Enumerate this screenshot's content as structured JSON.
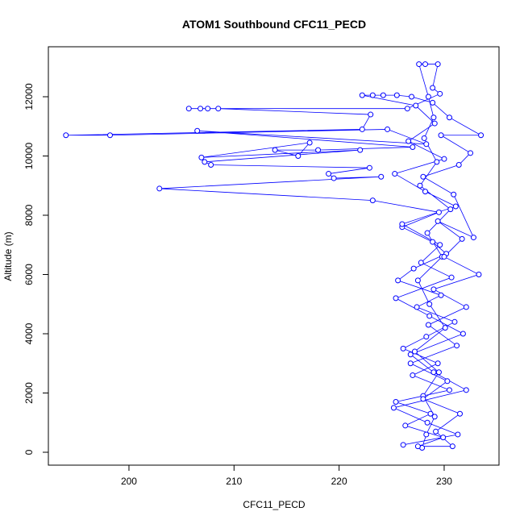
{
  "chart_data": {
    "type": "line",
    "title": "ATOM1 Southbound CFC11_PECD",
    "xlabel": "CFC11_PECD",
    "ylabel": "Altitude (m)",
    "markers": true,
    "color": "#0000ff",
    "x": [
      227.9,
      228.3,
      229.1,
      228.0,
      229.5,
      227.2,
      230.1,
      228.6,
      227.5,
      229.8,
      228.4,
      230.6,
      227.7,
      229.3,
      228.1,
      229.0,
      228.5,
      227.6,
      228.2,
      229.4,
      228.9,
      229.6,
      226.5,
      206.8,
      205.7,
      207.5,
      208.5,
      223.0,
      222.2,
      194.0,
      198.2,
      224.6,
      228.3,
      206.5,
      227.0,
      218.0,
      213.9,
      216.1,
      217.2,
      206.9,
      222.0,
      207.2,
      207.8,
      222.9,
      219.0,
      219.5,
      224.0,
      202.9,
      223.2,
      229.5,
      226.0,
      228.9,
      230.2,
      227.1,
      225.6,
      229.7,
      227.4,
      231.0,
      228.3,
      226.1,
      229.4,
      227.0,
      230.5,
      225.4,
      228.7,
      226.3,
      229.9,
      227.5,
      230.8,
      229.2,
      231.5,
      228.0,
      230.3,
      226.8,
      231.2,
      228.5,
      232.1,
      229.0,
      233.3,
      230.0,
      231.7,
      229.4,
      232.8,
      230.9,
      228.0,
      231.4,
      232.5,
      229.7,
      233.5,
      230.5,
      228.9,
      226.9,
      225.5,
      224.2,
      223.2,
      222.2,
      227.3,
      229.1,
      226.6,
      230.0,
      225.3,
      228.2,
      231.1,
      226.0,
      229.6,
      227.8,
      230.7,
      225.4,
      228.6,
      231.8,
      226.8,
      229.0,
      232.1,
      225.2,
      228.4,
      231.3,
      226.1
    ],
    "y": [
      150,
      600,
      1200,
      1900,
      2700,
      3400,
      4200,
      5000,
      5800,
      6600,
      7400,
      8200,
      9000,
      9800,
      10600,
      11300,
      12000,
      13100,
      13100,
      13100,
      12300,
      12100,
      11600,
      11600,
      11600,
      11600,
      11600,
      11400,
      10900,
      10700,
      10700,
      10900,
      10400,
      10850,
      10300,
      10200,
      10200,
      10000,
      10450,
      9950,
      10200,
      9800,
      9700,
      9600,
      9400,
      9250,
      9300,
      8900,
      8500,
      8100,
      7600,
      7100,
      6700,
      6200,
      5800,
      5300,
      4900,
      4400,
      3900,
      3500,
      3000,
      2600,
      2100,
      1700,
      1300,
      900,
      500,
      200,
      200,
      700,
      1300,
      1800,
      2400,
      3000,
      3600,
      4300,
      4900,
      5500,
      6000,
      6600,
      7200,
      7800,
      7250,
      8700,
      9300,
      9700,
      10100,
      10700,
      10700,
      11300,
      11800,
      12000,
      12050,
      12050,
      12050,
      12050,
      11700,
      11100,
      10500,
      9900,
      9400,
      8800,
      8300,
      7700,
      7000,
      6400,
      5900,
      5200,
      4600,
      4000,
      3300,
      2700,
      2100,
      1500,
      1000,
      600,
      250
    ],
    "xlim": [
      192.33,
      235.22
    ],
    "ylim": [
      -435,
      13687
    ],
    "xticks": [
      200,
      210,
      220,
      230
    ],
    "yticks": [
      0,
      2000,
      4000,
      6000,
      8000,
      10000,
      12000
    ]
  }
}
